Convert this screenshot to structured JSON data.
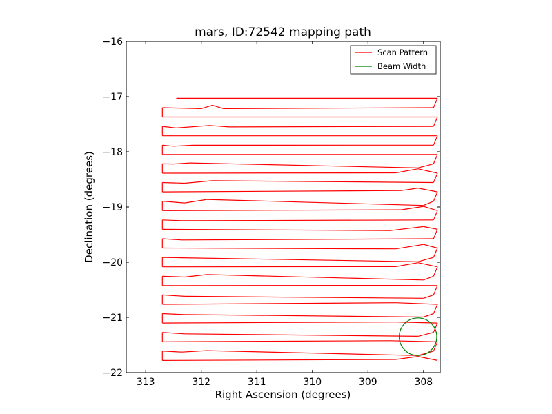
{
  "chart_data": {
    "type": "line",
    "title": "mars, ID:72542 mapping path",
    "xlabel": "Right Ascension (degrees)",
    "ylabel": "Declination (degrees)",
    "xlim": [
      313.35,
      307.7
    ],
    "ylim": [
      -22,
      -16
    ],
    "x_reversed": true,
    "grid": false,
    "legend_position": "upper right",
    "x_ticks": [
      313,
      312,
      311,
      310,
      309,
      308
    ],
    "x_tick_labels": [
      "313",
      "312",
      "311",
      "310",
      "309",
      "308"
    ],
    "y_ticks": [
      -16,
      -17,
      -18,
      -19,
      -20,
      -21,
      -22
    ],
    "y_tick_labels": [
      "−16",
      "−17",
      "−18",
      "−19",
      "−20",
      "−21",
      "−22"
    ],
    "series": [
      {
        "name": "Scan Pattern",
        "color": "#ff0000",
        "ra_min": 307.75,
        "ra_max": 312.7,
        "start_ra": 312.45,
        "start_dec": -17.03,
        "row_step": 0.34,
        "row_count": 14,
        "dec_first_row": -17.03,
        "wobble": [
          [
            312.7,
            -17.2
          ],
          [
            312.0,
            -17.22
          ],
          [
            311.8,
            -17.15
          ],
          [
            311.6,
            -17.22
          ],
          [
            312.45,
            -17.57
          ],
          [
            311.85,
            -17.52
          ],
          [
            311.5,
            -17.55
          ],
          [
            312.5,
            -17.9
          ],
          [
            312.15,
            -17.88
          ],
          [
            312.5,
            -18.22
          ],
          [
            312.2,
            -18.2
          ],
          [
            308.5,
            -18.38
          ],
          [
            308.1,
            -18.3
          ],
          [
            312.3,
            -18.57
          ],
          [
            311.8,
            -18.52
          ],
          [
            308.4,
            -18.7
          ],
          [
            308.1,
            -18.65
          ],
          [
            312.3,
            -18.93
          ],
          [
            311.9,
            -18.86
          ],
          [
            308.4,
            -19.05
          ],
          [
            308.0,
            -18.98
          ],
          [
            312.35,
            -19.25
          ],
          [
            308.6,
            -19.43
          ],
          [
            308.0,
            -19.35
          ],
          [
            312.35,
            -19.6
          ],
          [
            308.5,
            -19.76
          ],
          [
            308.0,
            -19.67
          ],
          [
            312.35,
            -19.92
          ],
          [
            308.5,
            -20.08
          ],
          [
            308.1,
            -20.0
          ],
          [
            312.3,
            -20.27
          ],
          [
            311.9,
            -20.22
          ],
          [
            308.5,
            -20.42
          ],
          [
            308.0,
            -20.33
          ],
          [
            312.3,
            -20.62
          ],
          [
            308.5,
            -20.73
          ],
          [
            308.0,
            -20.66
          ],
          [
            312.3,
            -20.95
          ],
          [
            308.5,
            -21.08
          ],
          [
            308.0,
            -21.0
          ],
          [
            312.3,
            -21.3
          ],
          [
            308.6,
            -21.42
          ],
          [
            308.1,
            -21.35
          ],
          [
            312.35,
            -21.63
          ],
          [
            311.9,
            -21.6
          ],
          [
            308.5,
            -21.76
          ],
          [
            308.1,
            -21.7
          ]
        ]
      },
      {
        "name": "Beam Width",
        "color": "#007f00",
        "center_ra": 308.1,
        "center_dec": -21.35,
        "radius_deg": 0.34
      }
    ]
  },
  "legend": {
    "items": [
      {
        "label": "Scan Pattern",
        "color": "#ff0000"
      },
      {
        "label": "Beam Width",
        "color": "#007f00"
      }
    ]
  }
}
